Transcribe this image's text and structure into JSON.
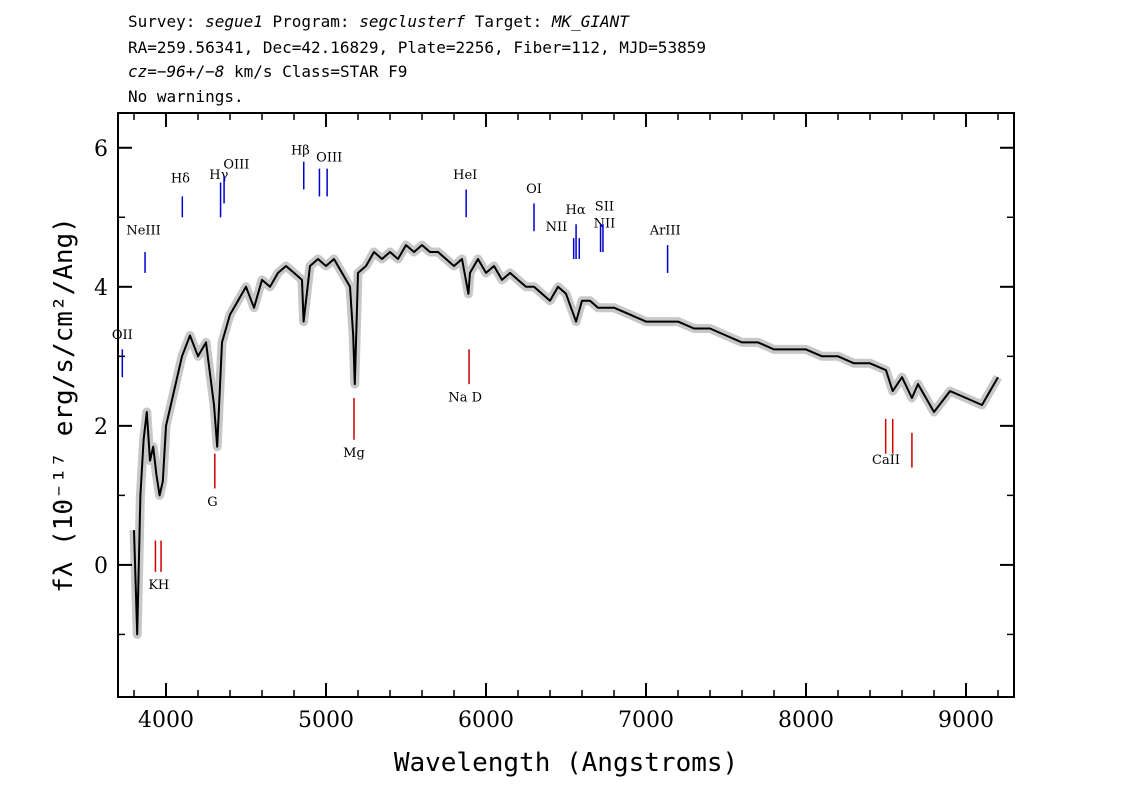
{
  "header": {
    "line1": {
      "survey_label": "Survey: ",
      "survey": "segue1",
      "program_label": " Program: ",
      "program": "segclusterf",
      "target_label": " Target: ",
      "target": "MK_GIANT"
    },
    "line2": "RA=259.56341, Dec=42.16829, Plate=2256, Fiber=112, MJD=53859",
    "line3": {
      "cz_label": "cz=",
      "cz": "−96",
      "pm": "+/−",
      "err": "8",
      "rest": " km/s Class=STAR F9"
    },
    "line4": "No warnings."
  },
  "chart_data": {
    "type": "line",
    "xlabel": "Wavelength (Angstroms)",
    "ylabel": "fλ (10⁻¹⁷ erg/s/cm²/Ang)",
    "xlim": [
      3700,
      9300
    ],
    "ylim": [
      -1.9,
      6.5
    ],
    "x_ticks": [
      4000,
      5000,
      6000,
      7000,
      8000,
      9000
    ],
    "y_ticks": [
      0,
      2,
      4,
      6
    ],
    "grid": false,
    "series": [
      {
        "style": "black",
        "x": [
          3800,
          3820,
          3840,
          3860,
          3880,
          3900,
          3920,
          3940,
          3960,
          3980,
          4000,
          4050,
          4100,
          4150,
          4200,
          4250,
          4300,
          4320,
          4350,
          4400,
          4450,
          4500,
          4550,
          4600,
          4650,
          4700,
          4750,
          4800,
          4850,
          4860,
          4900,
          4950,
          5000,
          5050,
          5100,
          5150,
          5170,
          5180,
          5200,
          5250,
          5300,
          5350,
          5400,
          5450,
          5500,
          5550,
          5600,
          5650,
          5700,
          5750,
          5800,
          5850,
          5890,
          5900,
          5950,
          6000,
          6050,
          6100,
          6150,
          6200,
          6250,
          6300,
          6350,
          6400,
          6450,
          6500,
          6563,
          6600,
          6650,
          6700,
          6800,
          6900,
          7000,
          7100,
          7200,
          7300,
          7400,
          7500,
          7600,
          7700,
          7800,
          7900,
          8000,
          8100,
          8200,
          8300,
          8400,
          8500,
          8542,
          8600,
          8662,
          8700,
          8800,
          8900,
          9000,
          9100,
          9200
        ],
        "y": [
          0.5,
          -1.0,
          1.0,
          1.8,
          2.2,
          1.5,
          1.7,
          1.3,
          1.0,
          1.2,
          2.0,
          2.5,
          3.0,
          3.3,
          3.0,
          3.2,
          2.3,
          1.7,
          3.2,
          3.6,
          3.8,
          4.0,
          3.7,
          4.1,
          4.0,
          4.2,
          4.3,
          4.2,
          4.1,
          3.5,
          4.3,
          4.4,
          4.3,
          4.4,
          4.2,
          4.0,
          3.3,
          2.6,
          4.2,
          4.3,
          4.5,
          4.4,
          4.5,
          4.4,
          4.6,
          4.5,
          4.6,
          4.5,
          4.5,
          4.4,
          4.3,
          4.4,
          3.9,
          4.2,
          4.4,
          4.2,
          4.3,
          4.1,
          4.2,
          4.1,
          4.0,
          4.0,
          3.9,
          3.8,
          4.0,
          3.9,
          3.5,
          3.8,
          3.8,
          3.7,
          3.7,
          3.6,
          3.5,
          3.5,
          3.5,
          3.4,
          3.4,
          3.3,
          3.2,
          3.2,
          3.1,
          3.1,
          3.1,
          3.0,
          3.0,
          2.9,
          2.9,
          2.8,
          2.5,
          2.7,
          2.4,
          2.6,
          2.2,
          2.5,
          2.4,
          2.3,
          2.7
        ]
      }
    ],
    "lines": [
      {
        "label": "OII",
        "x": 3727,
        "color": "#0000cc",
        "y0": 3.1,
        "y1": 2.7,
        "lx": 3727,
        "ly": 3.25
      },
      {
        "label": "NeIII",
        "x": 3869,
        "color": "#0000cc",
        "y0": 4.5,
        "y1": 4.2,
        "lx": 3860,
        "ly": 4.75
      },
      {
        "label": "Hδ",
        "x": 4102,
        "color": "#0000cc",
        "y0": 5.3,
        "y1": 5.0,
        "lx": 4090,
        "ly": 5.5
      },
      {
        "label": "Hγ",
        "x": 4341,
        "color": "#0000cc",
        "y0": 5.5,
        "y1": 5.0,
        "lx": 4330,
        "ly": 5.55
      },
      {
        "label": "OIII",
        "x": 4363,
        "color": "#0000cc",
        "y0": 5.6,
        "y1": 5.2,
        "lx": 4440,
        "ly": 5.7
      },
      {
        "label": "Hβ",
        "x": 4861,
        "color": "#0000cc",
        "y0": 5.8,
        "y1": 5.4,
        "lx": 4840,
        "ly": 5.9
      },
      {
        "label": "OIII",
        "x": 4959,
        "color": "#0000cc",
        "y0": 5.7,
        "y1": 5.3,
        "lx": 5020,
        "ly": 5.8
      },
      {
        "label": "OIII",
        "x": 5007,
        "color": "#0000cc",
        "y0": 5.7,
        "y1": 5.3,
        "lx": 5020,
        "ly": 5.8
      },
      {
        "label": "HeI",
        "x": 5876,
        "color": "#0000cc",
        "y0": 5.4,
        "y1": 5.0,
        "lx": 5870,
        "ly": 5.55
      },
      {
        "label": "OI",
        "x": 6300,
        "color": "#0000cc",
        "y0": 5.2,
        "y1": 4.8,
        "lx": 6300,
        "ly": 5.35
      },
      {
        "label": "NII",
        "x": 6548,
        "color": "#0000cc",
        "y0": 4.7,
        "y1": 4.4,
        "lx": 6440,
        "ly": 4.8
      },
      {
        "label": "Hα",
        "x": 6563,
        "color": "#0000cc",
        "y0": 4.9,
        "y1": 4.4,
        "lx": 6560,
        "ly": 5.05
      },
      {
        "label": "NII",
        "x": 6583,
        "color": "#0000cc",
        "y0": 4.7,
        "y1": 4.4,
        "lx": 6740,
        "ly": 4.85
      },
      {
        "label": "SII",
        "x": 6716,
        "color": "#0000cc",
        "y0": 4.9,
        "y1": 4.5,
        "lx": 6740,
        "ly": 5.1
      },
      {
        "label": "SII",
        "x": 6731,
        "color": "#0000cc",
        "y0": 4.9,
        "y1": 4.5,
        "lx": 6740,
        "ly": 5.1
      },
      {
        "label": "ArIII",
        "x": 7135,
        "color": "#0000cc",
        "y0": 4.6,
        "y1": 4.2,
        "lx": 7120,
        "ly": 4.75
      },
      {
        "label": "K",
        "x": 3934,
        "color": "#cc0000",
        "y0": -0.1,
        "y1": 0.35,
        "lx": 3920,
        "ly": -0.35
      },
      {
        "label": "H",
        "x": 3969,
        "color": "#cc0000",
        "y0": -0.1,
        "y1": 0.35,
        "lx": 3985,
        "ly": -0.35
      },
      {
        "label": "G",
        "x": 4305,
        "color": "#cc0000",
        "y0": 1.1,
        "y1": 1.6,
        "lx": 4290,
        "ly": 0.85
      },
      {
        "label": "Mg",
        "x": 5175,
        "color": "#cc0000",
        "y0": 1.8,
        "y1": 2.4,
        "lx": 5175,
        "ly": 1.55
      },
      {
        "label": "Na D",
        "x": 5894,
        "color": "#cc0000",
        "y0": 2.6,
        "y1": 3.1,
        "lx": 5870,
        "ly": 2.35
      },
      {
        "label": "CaII",
        "x": 8498,
        "color": "#cc0000",
        "y0": 1.6,
        "y1": 2.1,
        "lx": 8500,
        "ly": 1.45
      },
      {
        "label": "CaII",
        "x": 8542,
        "color": "#cc0000",
        "y0": 1.6,
        "y1": 2.1,
        "lx": 8500,
        "ly": 1.45
      },
      {
        "label": "CaII",
        "x": 8662,
        "color": "#cc0000",
        "y0": 1.4,
        "y1": 1.9,
        "lx": 8500,
        "ly": 1.45
      }
    ]
  }
}
